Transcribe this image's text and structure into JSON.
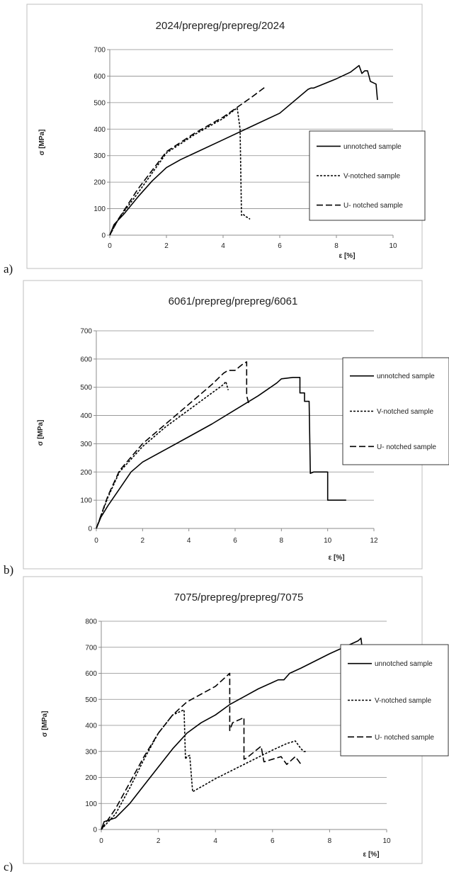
{
  "chart_data": [
    {
      "type": "line",
      "panel_label": "a)",
      "title": "2024/prepreg/prepreg/2024",
      "xlabel": "ε [%]",
      "ylabel": "σ [MPa]",
      "xlim": [
        0,
        10
      ],
      "ylim": [
        0,
        700
      ],
      "xticks": [
        0,
        2,
        4,
        6,
        8,
        10
      ],
      "yticks": [
        0,
        100,
        200,
        300,
        400,
        500,
        600,
        700
      ],
      "grid": "horizontal",
      "legend_position": "right",
      "series": [
        {
          "name": "unnotched sample",
          "style": "solid",
          "x": [
            0,
            0.15,
            0.5,
            1,
            1.5,
            2,
            2.5,
            3,
            4,
            5,
            6,
            7,
            7.1,
            7.2,
            8,
            8.5,
            8.8,
            8.9,
            9.0,
            9.1,
            9.15,
            9.2,
            9.3,
            9.4,
            9.45
          ],
          "y": [
            0,
            40,
            80,
            145,
            205,
            255,
            285,
            310,
            360,
            410,
            460,
            550,
            555,
            555,
            590,
            615,
            640,
            610,
            620,
            620,
            600,
            580,
            575,
            570,
            510
          ]
        },
        {
          "name": "V-notched sample",
          "style": "dotted",
          "x": [
            0,
            0.3,
            1,
            2,
            3,
            4,
            4.5,
            4.6,
            4.65,
            4.7,
            4.8,
            4.9,
            4.95
          ],
          "y": [
            0,
            60,
            160,
            310,
            380,
            440,
            480,
            400,
            75,
            80,
            70,
            65,
            60
          ]
        },
        {
          "name": "U- notched sample",
          "style": "dashed",
          "x": [
            0,
            0.3,
            1,
            2,
            3,
            4,
            5,
            5.5
          ],
          "y": [
            0,
            60,
            175,
            315,
            385,
            445,
            520,
            560
          ]
        }
      ]
    },
    {
      "type": "line",
      "panel_label": "b)",
      "title": "6061/prepreg/prepreg/6061",
      "xlabel": "ε [%]",
      "ylabel": "σ [MPa]",
      "xlim": [
        0,
        12
      ],
      "ylim": [
        0,
        700
      ],
      "xticks": [
        0,
        2,
        4,
        6,
        8,
        10,
        12
      ],
      "yticks": [
        0,
        100,
        200,
        300,
        400,
        500,
        600,
        700
      ],
      "grid": "horizontal",
      "legend_position": "right",
      "series": [
        {
          "name": "unnotched sample",
          "style": "solid",
          "x": [
            0,
            0.2,
            0.5,
            1,
            1.5,
            2,
            3,
            4,
            5,
            6,
            7,
            7.8,
            8,
            8.5,
            8.8,
            8.8,
            9.0,
            9.0,
            9.2,
            9.25,
            9.4,
            10.0,
            10.0,
            10.8
          ],
          "y": [
            0,
            40,
            80,
            140,
            200,
            235,
            280,
            325,
            370,
            420,
            470,
            515,
            530,
            535,
            535,
            480,
            480,
            450,
            450,
            195,
            200,
            200,
            100,
            100
          ]
        },
        {
          "name": "V-notched sample",
          "style": "dotted",
          "x": [
            0,
            0.5,
            1,
            2,
            3,
            4,
            5,
            5.5,
            5.6,
            5.7
          ],
          "y": [
            0,
            110,
            200,
            290,
            360,
            420,
            480,
            510,
            520,
            490
          ]
        },
        {
          "name": "U- notched sample",
          "style": "dashed",
          "x": [
            0,
            0.5,
            1,
            2,
            3,
            4,
            5,
            5.5,
            5.7,
            6,
            6.3,
            6.5,
            6.5,
            6.6
          ],
          "y": [
            0,
            115,
            205,
            300,
            370,
            440,
            510,
            550,
            560,
            560,
            580,
            590,
            470,
            440
          ]
        }
      ]
    },
    {
      "type": "line",
      "panel_label": "c)",
      "title": "7075/prepreg/prepreg/7075",
      "xlabel": "ε [%]",
      "ylabel": "σ [MPa]",
      "xlim": [
        0,
        10
      ],
      "ylim": [
        0,
        800
      ],
      "xticks": [
        0,
        2,
        4,
        6,
        8,
        10
      ],
      "yticks": [
        0,
        100,
        200,
        300,
        400,
        500,
        600,
        700,
        800
      ],
      "grid": "horizontal",
      "legend_position": "right",
      "series": [
        {
          "name": "unnotched sample",
          "style": "solid",
          "x": [
            0,
            0.1,
            0.5,
            1,
            1.5,
            2,
            2.5,
            3,
            3.5,
            4,
            4.5,
            5,
            5.5,
            6,
            6.2,
            6.4,
            6.6,
            7,
            8,
            9,
            9.1,
            9.15
          ],
          "y": [
            0,
            30,
            45,
            100,
            170,
            240,
            310,
            370,
            410,
            440,
            480,
            510,
            540,
            565,
            575,
            575,
            600,
            620,
            675,
            725,
            735,
            690
          ]
        },
        {
          "name": "V-notched sample",
          "style": "dotted",
          "x": [
            0,
            0.5,
            1,
            1.5,
            2,
            2.5,
            2.9,
            2.95,
            3.0,
            3.1,
            3.2,
            4,
            5,
            6,
            6.5,
            6.8,
            7.0,
            7.1,
            7.2
          ],
          "y": [
            0,
            60,
            160,
            270,
            370,
            440,
            460,
            270,
            280,
            285,
            145,
            195,
            250,
            305,
            330,
            340,
            310,
            300,
            300
          ]
        },
        {
          "name": "U- notched sample",
          "style": "dashed",
          "x": [
            0,
            0.5,
            1,
            1.5,
            2,
            2.5,
            3,
            4,
            4.5,
            4.5,
            4.6,
            5.0,
            5.0,
            5.1,
            5.6,
            5.7,
            6.0,
            6.3,
            6.5,
            6.8,
            7.0
          ],
          "y": [
            0,
            80,
            180,
            280,
            370,
            440,
            490,
            550,
            600,
            380,
            410,
            430,
            270,
            275,
            320,
            260,
            270,
            280,
            250,
            280,
            250
          ]
        }
      ]
    }
  ]
}
